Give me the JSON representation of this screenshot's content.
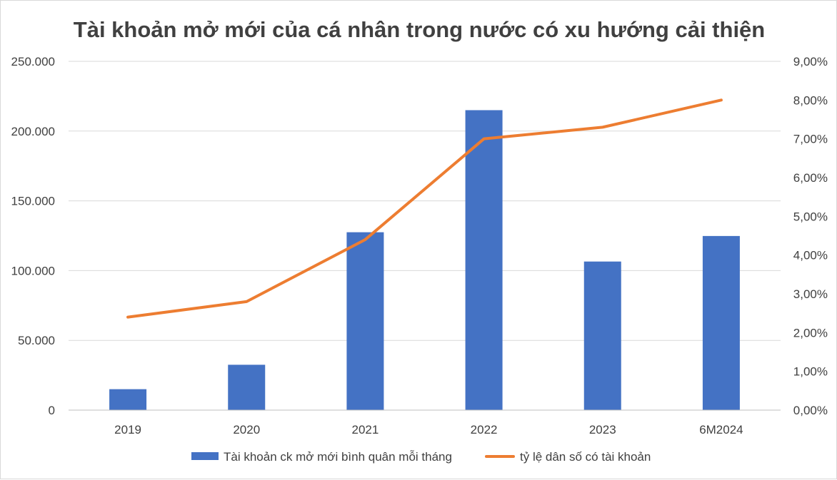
{
  "chart_data": {
    "type": "bar",
    "title": "Tài khoản mở mới của cá nhân trong nước có xu hướng cải thiện",
    "categories": [
      "2019",
      "2020",
      "2021",
      "2022",
      "2023",
      "6M2024"
    ],
    "series": [
      {
        "name": "Tài khoản ck mở mới bình quân mỗi tháng",
        "type": "bar",
        "axis": "left",
        "color": "#4472C4",
        "values": [
          15000,
          32500,
          127500,
          215000,
          106500,
          124800
        ]
      },
      {
        "name": "tỷ lệ dân số có tài khoản",
        "type": "line",
        "axis": "right",
        "color": "#ED7D31",
        "values": [
          2.4,
          2.8,
          4.4,
          7.0,
          7.3,
          8.0
        ]
      }
    ],
    "y_left": {
      "ylim": [
        0,
        250000
      ],
      "ticks": [
        0,
        50000,
        100000,
        150000,
        200000,
        250000
      ],
      "tick_labels": [
        "0",
        "50.000",
        "100.000",
        "150.000",
        "200.000",
        "250.000"
      ]
    },
    "y_right": {
      "ylim": [
        0,
        9
      ],
      "ticks": [
        0,
        1,
        2,
        3,
        4,
        5,
        6,
        7,
        8,
        9
      ],
      "tick_labels": [
        "0,00%",
        "1,00%",
        "2,00%",
        "3,00%",
        "4,00%",
        "5,00%",
        "6,00%",
        "7,00%",
        "8,00%",
        "9,00%"
      ]
    },
    "xlabel": "",
    "ylabel": "",
    "grid": true,
    "legend_position": "bottom"
  }
}
